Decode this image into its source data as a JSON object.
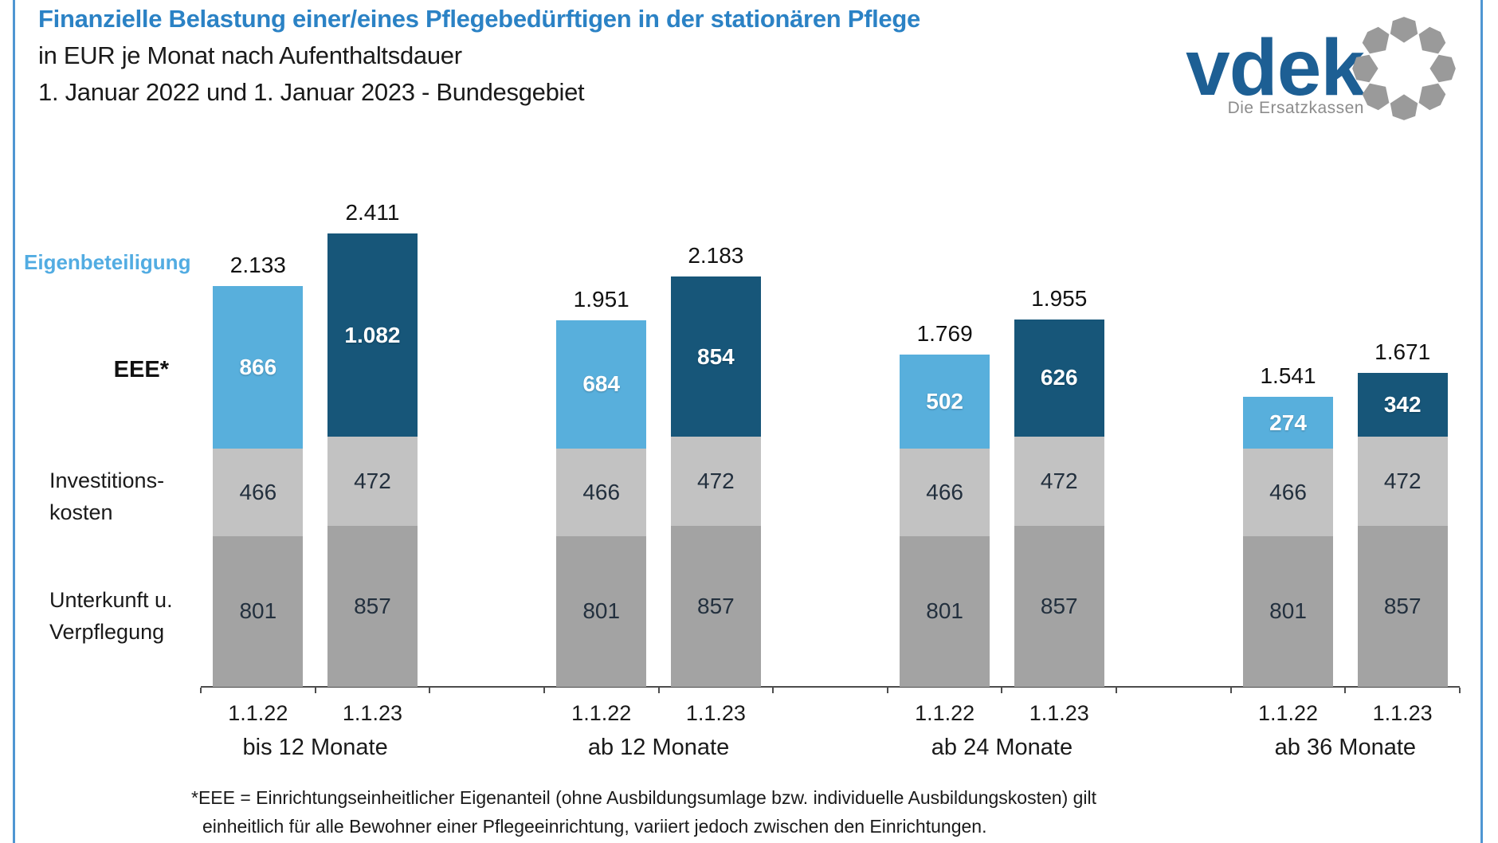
{
  "header": {
    "title_line1": "Finanzielle Belastung einer/eines Pflegebedürftigen in der stationären Pflege",
    "title_line2": "in EUR je Monat nach Aufenthaltsdauer",
    "title_line3": "1. Januar 2022 und 1. Januar 2023 - Bundesgebiet"
  },
  "logo": {
    "wordmark": "vdek",
    "tagline": "Die Ersatzkassen",
    "ring_icon": "dotted-ring-icon"
  },
  "row_labels": {
    "eigenbeteiligung": "Eigenbeteiligung",
    "eee": "EEE*",
    "investitionskosten_line1": "Investitions-",
    "investitionskosten_line2": "kosten",
    "unterkunft_line1": "Unterkunft u.",
    "unterkunft_line2": "Verpflegung"
  },
  "footnote": {
    "line1": "*EEE = Einrichtungseinheitlicher Eigenanteil (ohne Ausbildungsumlage bzw. individuelle Ausbildungskosten) gilt",
    "line2": "einheitlich für alle Bewohner einer Pflegeeinrichtung, variiert jedoch zwischen den Einrichtungen."
  },
  "colors": {
    "title_blue": "#2b82c5",
    "border_blue": "#4f96d2",
    "logo_blue": "#1d5f94",
    "logo_gray": "#9a9a9a",
    "bar_light_blue_2022": "#58afdc",
    "bar_dark_blue_2023": "#175679",
    "bar_light_gray_investitionskosten": "#c2c2c2",
    "bar_dark_gray_unterkunft": "#a3a3a3",
    "axis_gray": "#4d4d4d",
    "eigenbeteiligung_label_blue": "#52ace2"
  },
  "chart_data": {
    "type": "bar",
    "stacked": true,
    "title": "Finanzielle Belastung einer/eines Pflegebedürftigen in der stationären Pflege in EUR je Monat nach Aufenthaltsdauer, 1. Januar 2022 und 1. Januar 2023, Bundesgebiet",
    "value_unit": "EUR je Monat",
    "gridlines": false,
    "legend_position": "row labels at left (Eigenbeteiligung/EEE*, Investitionskosten, Unterkunft u. Verpflegung)",
    "series_order_bottom_to_top": [
      "Unterkunft u. Verpflegung",
      "Investitionskosten",
      "Eigenbeteiligung (EEE*)"
    ],
    "groups": [
      {
        "label": "bis 12 Monate",
        "bars": [
          {
            "date": "1.1.22",
            "total": 2133,
            "total_label": "2.133",
            "segments": [
              {
                "key": "unterkunft",
                "value": 801,
                "label": "801"
              },
              {
                "key": "investitionskosten",
                "value": 466,
                "label": "466"
              },
              {
                "key": "eee",
                "value": 866,
                "label": "866"
              }
            ]
          },
          {
            "date": "1.1.23",
            "total": 2411,
            "total_label": "2.411",
            "segments": [
              {
                "key": "unterkunft",
                "value": 857,
                "label": "857"
              },
              {
                "key": "investitionskosten",
                "value": 472,
                "label": "472"
              },
              {
                "key": "eee",
                "value": 1082,
                "label": "1.082"
              }
            ]
          }
        ]
      },
      {
        "label": "ab 12 Monate",
        "bars": [
          {
            "date": "1.1.22",
            "total": 1951,
            "total_label": "1.951",
            "segments": [
              {
                "key": "unterkunft",
                "value": 801,
                "label": "801"
              },
              {
                "key": "investitionskosten",
                "value": 466,
                "label": "466"
              },
              {
                "key": "eee",
                "value": 684,
                "label": "684"
              }
            ]
          },
          {
            "date": "1.1.23",
            "total": 2183,
            "total_label": "2.183",
            "segments": [
              {
                "key": "unterkunft",
                "value": 857,
                "label": "857"
              },
              {
                "key": "investitionskosten",
                "value": 472,
                "label": "472"
              },
              {
                "key": "eee",
                "value": 854,
                "label": "854"
              }
            ]
          }
        ]
      },
      {
        "label": "ab 24 Monate",
        "bars": [
          {
            "date": "1.1.22",
            "total": 1769,
            "total_label": "1.769",
            "segments": [
              {
                "key": "unterkunft",
                "value": 801,
                "label": "801"
              },
              {
                "key": "investitionskosten",
                "value": 466,
                "label": "466"
              },
              {
                "key": "eee",
                "value": 502,
                "label": "502"
              }
            ]
          },
          {
            "date": "1.1.23",
            "total": 1955,
            "total_label": "1.955",
            "segments": [
              {
                "key": "unterkunft",
                "value": 857,
                "label": "857"
              },
              {
                "key": "investitionskosten",
                "value": 472,
                "label": "472"
              },
              {
                "key": "eee",
                "value": 626,
                "label": "626"
              }
            ]
          }
        ]
      },
      {
        "label": "ab 36 Monate",
        "bars": [
          {
            "date": "1.1.22",
            "total": 1541,
            "total_label": "1.541",
            "segments": [
              {
                "key": "unterkunft",
                "value": 801,
                "label": "801"
              },
              {
                "key": "investitionskosten",
                "value": 466,
                "label": "466"
              },
              {
                "key": "eee",
                "value": 274,
                "label": "274"
              }
            ]
          },
          {
            "date": "1.1.23",
            "total": 1671,
            "total_label": "1.671",
            "segments": [
              {
                "key": "unterkunft",
                "value": 857,
                "label": "857"
              },
              {
                "key": "investitionskosten",
                "value": 472,
                "label": "472"
              },
              {
                "key": "eee",
                "value": 342,
                "label": "342"
              }
            ]
          }
        ]
      }
    ]
  }
}
